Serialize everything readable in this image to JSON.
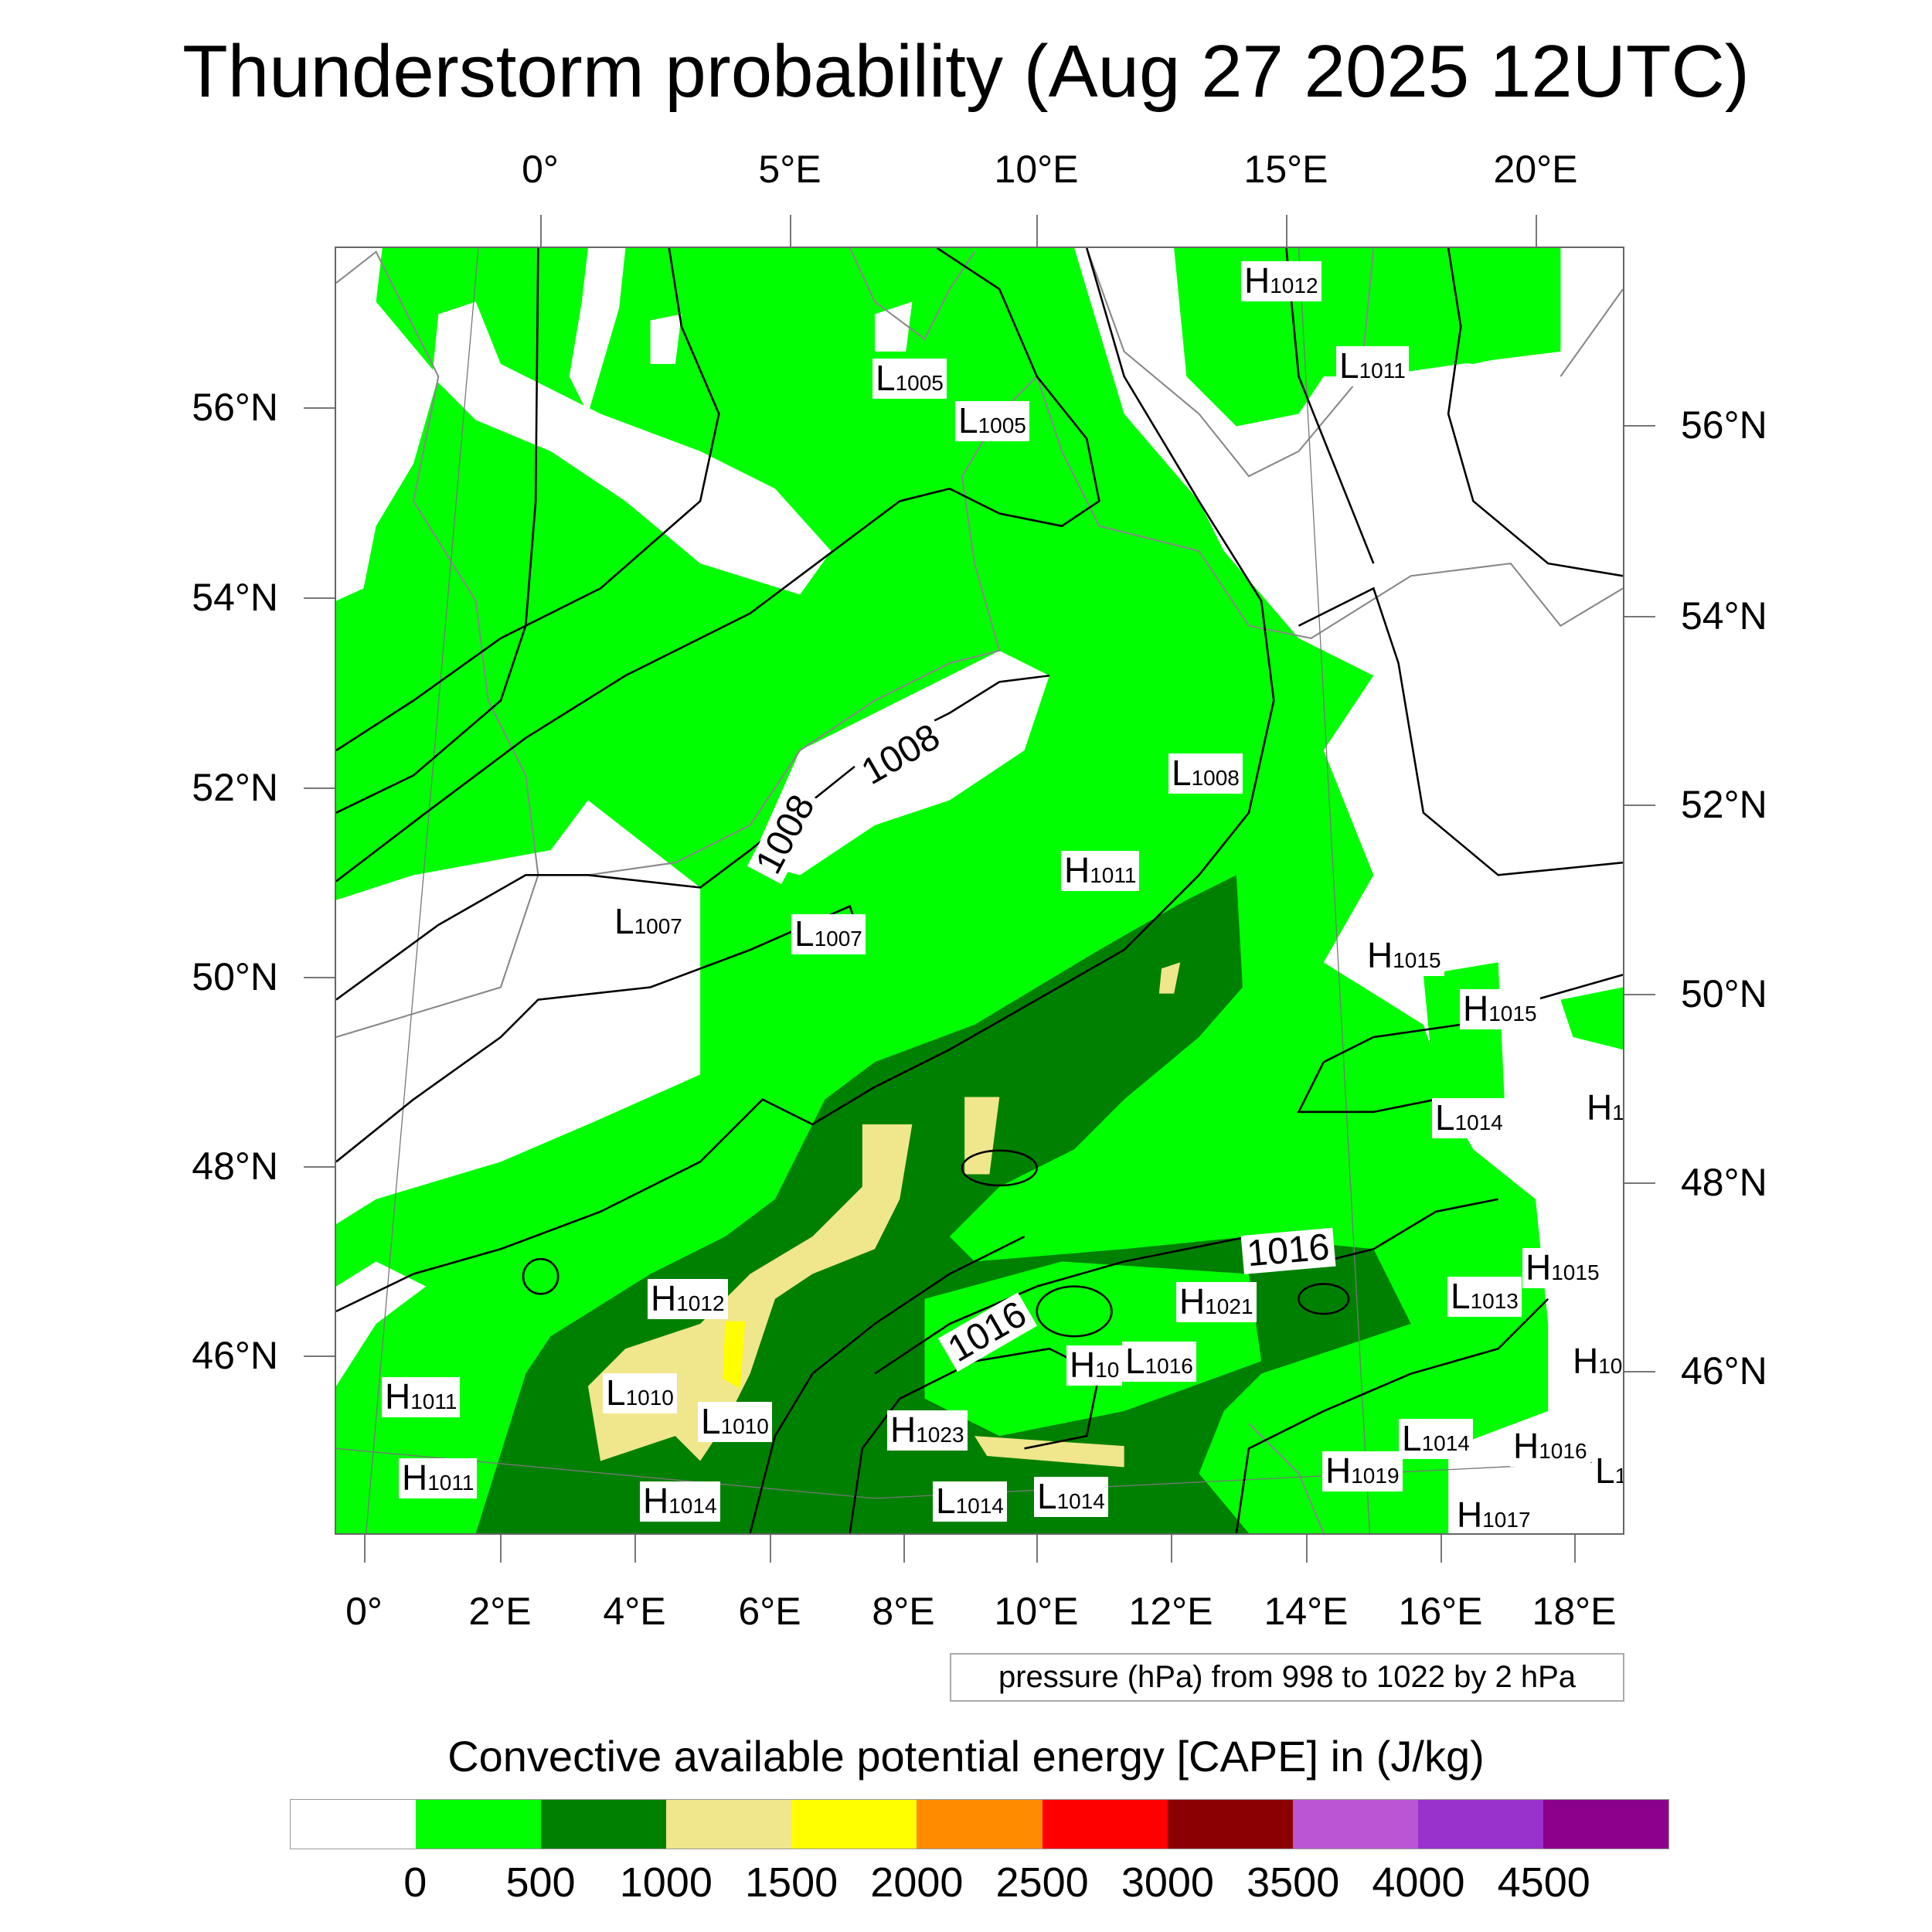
{
  "title": "Thunderstorm probability (Aug 27 2025 12UTC)",
  "top_lon_labels": [
    "0°",
    "5°E",
    "10°E",
    "15°E",
    "20°E"
  ],
  "left_lat_labels": [
    "56°N",
    "54°N",
    "52°N",
    "50°N",
    "48°N",
    "46°N"
  ],
  "right_lat_labels": [
    "56°N",
    "54°N",
    "52°N",
    "50°N",
    "48°N",
    "46°N"
  ],
  "bottom_lon_labels": [
    "0°",
    "2°E",
    "4°E",
    "6°E",
    "8°E",
    "10°E",
    "12°E",
    "14°E",
    "16°E",
    "18°E"
  ],
  "pressure_note": "pressure (hPa) from 998 to 1022 by 2 hPa",
  "colorbar": {
    "title": "Convective available potential energy [CAPE] in (J/kg)",
    "colors": [
      "#ffffff",
      "#00ff00",
      "#008000",
      "#f0e68c",
      "#ffff00",
      "#ff8c00",
      "#ff0000",
      "#8b0000",
      "#ba55d3",
      "#9932cc",
      "#8b008b"
    ],
    "labels": [
      "0",
      "500",
      "1000",
      "1500",
      "2000",
      "2500",
      "3000",
      "3500",
      "4000",
      "4500"
    ]
  },
  "pressure_centers": [
    {
      "type": "H",
      "value": "1012"
    },
    {
      "type": "L",
      "value": "1011"
    },
    {
      "type": "L",
      "value": "1005"
    },
    {
      "type": "L",
      "value": "1005"
    },
    {
      "type": "L",
      "value": "1008"
    },
    {
      "type": "H",
      "value": "1011"
    },
    {
      "type": "L",
      "value": "1007"
    },
    {
      "type": "L",
      "value": "1007"
    },
    {
      "type": "H",
      "value": "1015"
    },
    {
      "type": "H",
      "value": "1015"
    },
    {
      "type": "L",
      "value": "1014"
    },
    {
      "type": "H",
      "value": "10"
    },
    {
      "type": "H",
      "value": "1012"
    },
    {
      "type": "H",
      "value": "1021"
    },
    {
      "type": "L",
      "value": "1013"
    },
    {
      "type": "H",
      "value": "1015"
    },
    {
      "type": "H",
      "value": "10"
    },
    {
      "type": "L",
      "value": "1016"
    },
    {
      "type": "H",
      "value": "101"
    },
    {
      "type": "H",
      "value": "1011"
    },
    {
      "type": "L",
      "value": "1010"
    },
    {
      "type": "L",
      "value": "1010"
    },
    {
      "type": "H",
      "value": "1023"
    },
    {
      "type": "L",
      "value": "1014"
    },
    {
      "type": "H",
      "value": "1016"
    },
    {
      "type": "L",
      "value": "1"
    },
    {
      "type": "H",
      "value": "1011"
    },
    {
      "type": "H",
      "value": "1019"
    },
    {
      "type": "H",
      "value": "1014"
    },
    {
      "type": "L",
      "value": "1014"
    },
    {
      "type": "L",
      "value": "1014"
    },
    {
      "type": "H",
      "value": "1017"
    }
  ],
  "contour_labels": [
    "1008",
    "1008",
    "1016",
    "1016"
  ]
}
